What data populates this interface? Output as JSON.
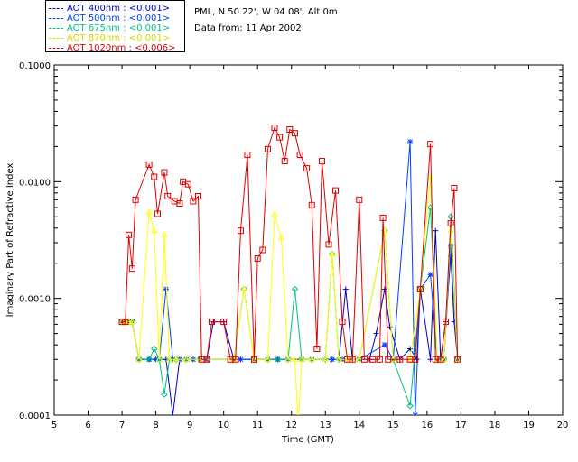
{
  "header": {
    "station": "PML, N 50 22', W 04 08', Alt 0m",
    "date": "Data from: 11 Apr 2002"
  },
  "chart_data": {
    "type": "line",
    "title": "",
    "xlabel": "Time (GMT)",
    "ylabel": "Imaginary Part of Refractive Index",
    "xlim": [
      5,
      20
    ],
    "ylim": [
      0.0001,
      0.1
    ],
    "yscale": "log",
    "xticks": [
      "5",
      "6",
      "7",
      "8",
      "9",
      "10",
      "11",
      "12",
      "13",
      "14",
      "15",
      "16",
      "17",
      "18",
      "19",
      "20"
    ],
    "yticks": [
      "0.0001",
      "0.0010",
      "0.0100",
      "0.1000"
    ],
    "legend_position": "top-left",
    "series": [
      {
        "name": "AOT  400nm : <0.001>",
        "color": "#0000c0",
        "marker": "plus",
        "points": [
          [
            7.0,
            0.00063
          ],
          [
            7.1,
            0.00063
          ],
          [
            7.2,
            0.00063
          ],
          [
            7.3,
            0.00063
          ],
          [
            7.5,
            0.0003
          ],
          [
            7.8,
            0.0003
          ],
          [
            8.0,
            0.0003
          ],
          [
            8.1,
            0.0003
          ],
          [
            8.3,
            0.0003
          ],
          [
            8.5,
            0.0001
          ],
          [
            8.7,
            0.0003
          ],
          [
            8.9,
            0.0003
          ],
          [
            9.1,
            0.0003
          ],
          [
            9.3,
            0.0003
          ],
          [
            9.5,
            0.0003
          ],
          [
            9.7,
            0.00063
          ],
          [
            10.0,
            0.00063
          ],
          [
            10.3,
            0.0003
          ],
          [
            10.5,
            0.0003
          ],
          [
            10.9,
            0.0003
          ],
          [
            11.3,
            0.0003
          ],
          [
            11.6,
            0.0003
          ],
          [
            11.9,
            0.0003
          ],
          [
            12.3,
            0.0003
          ],
          [
            12.6,
            0.0003
          ],
          [
            12.9,
            0.0003
          ],
          [
            13.2,
            0.0003
          ],
          [
            13.4,
            0.0003
          ],
          [
            13.6,
            0.0012
          ],
          [
            13.8,
            0.0003
          ],
          [
            14.0,
            0.0003
          ],
          [
            14.3,
            0.0003
          ],
          [
            14.5,
            0.0005
          ],
          [
            14.75,
            0.0012
          ],
          [
            14.9,
            0.00057
          ],
          [
            15.2,
            0.0003
          ],
          [
            15.5,
            0.00037
          ],
          [
            15.7,
            0.0003
          ],
          [
            15.8,
            0.0012
          ],
          [
            16.1,
            0.0003
          ],
          [
            16.25,
            0.0038
          ],
          [
            16.4,
            0.0003
          ],
          [
            16.55,
            0.00063
          ],
          [
            16.7,
            0.0023
          ],
          [
            16.8,
            0.00063
          ],
          [
            16.9,
            0.0003
          ]
        ]
      },
      {
        "name": "AOT  500nm : <0.001>",
        "color": "#0040ff",
        "marker": "star",
        "points": [
          [
            7.0,
            0.00063
          ],
          [
            7.1,
            0.00063
          ],
          [
            7.2,
            0.00063
          ],
          [
            7.3,
            0.00063
          ],
          [
            7.5,
            0.0003
          ],
          [
            7.8,
            0.0003
          ],
          [
            8.0,
            0.0003
          ],
          [
            8.1,
            0.0003
          ],
          [
            8.3,
            0.0012
          ],
          [
            8.5,
            0.0003
          ],
          [
            8.7,
            0.0003
          ],
          [
            8.9,
            0.0003
          ],
          [
            9.1,
            0.0003
          ],
          [
            9.3,
            0.0003
          ],
          [
            9.5,
            0.0003
          ],
          [
            10.3,
            0.0003
          ],
          [
            10.5,
            0.0003
          ],
          [
            10.9,
            0.0003
          ],
          [
            11.3,
            0.0003
          ],
          [
            11.6,
            0.0003
          ],
          [
            11.9,
            0.0003
          ],
          [
            12.3,
            0.0003
          ],
          [
            12.6,
            0.0003
          ],
          [
            13.2,
            0.0003
          ],
          [
            13.5,
            0.0003
          ],
          [
            14.0,
            0.0003
          ],
          [
            14.75,
            0.0004
          ],
          [
            15.0,
            0.0003
          ],
          [
            15.5,
            0.022
          ],
          [
            15.65,
            0.0001
          ],
          [
            15.8,
            0.0012
          ],
          [
            16.1,
            0.0016
          ],
          [
            16.3,
            0.0003
          ],
          [
            16.5,
            0.0003
          ],
          [
            16.7,
            0.0028
          ],
          [
            16.9,
            0.0003
          ]
        ]
      },
      {
        "name": "AOT  675nm : <0.001>",
        "color": "#00c080",
        "marker": "diamond",
        "points": [
          [
            7.0,
            0.00063
          ],
          [
            7.1,
            0.00063
          ],
          [
            7.2,
            0.00063
          ],
          [
            7.3,
            0.00063
          ],
          [
            7.5,
            0.0003
          ],
          [
            7.8,
            0.0003
          ],
          [
            7.95,
            0.00037
          ],
          [
            8.1,
            0.0003
          ],
          [
            8.25,
            0.00015
          ],
          [
            8.4,
            0.0003
          ],
          [
            8.6,
            0.0003
          ],
          [
            8.9,
            0.0003
          ],
          [
            9.3,
            0.0003
          ],
          [
            10.3,
            0.0003
          ],
          [
            10.6,
            0.0012
          ],
          [
            10.9,
            0.0003
          ],
          [
            11.3,
            0.0003
          ],
          [
            11.6,
            0.0003
          ],
          [
            11.9,
            0.0003
          ],
          [
            12.1,
            0.0012
          ],
          [
            12.3,
            0.0003
          ],
          [
            12.6,
            0.0003
          ],
          [
            13.0,
            0.0003
          ],
          [
            13.2,
            0.0024
          ],
          [
            13.4,
            0.0003
          ],
          [
            13.7,
            0.0003
          ],
          [
            14.0,
            0.0003
          ],
          [
            14.75,
            0.0038
          ],
          [
            15.0,
            0.0003
          ],
          [
            15.5,
            0.00012
          ],
          [
            15.8,
            0.0012
          ],
          [
            16.1,
            0.006
          ],
          [
            16.3,
            0.0003
          ],
          [
            16.5,
            0.0003
          ],
          [
            16.7,
            0.005
          ],
          [
            16.9,
            0.0003
          ]
        ]
      },
      {
        "name": "AOT  870nm : <0.001>",
        "color": "#ffff00",
        "marker": "triangle",
        "points": [
          [
            7.0,
            0.00063
          ],
          [
            7.1,
            0.00063
          ],
          [
            7.2,
            0.00063
          ],
          [
            7.3,
            0.00063
          ],
          [
            7.5,
            0.0003
          ],
          [
            7.8,
            0.0055
          ],
          [
            7.95,
            0.0038
          ],
          [
            8.1,
            0.0003
          ],
          [
            8.25,
            0.0035
          ],
          [
            8.4,
            0.0003
          ],
          [
            8.6,
            0.0003
          ],
          [
            8.9,
            0.0003
          ],
          [
            9.3,
            0.0003
          ],
          [
            10.3,
            0.0003
          ],
          [
            10.6,
            0.0012
          ],
          [
            10.9,
            0.0003
          ],
          [
            11.3,
            0.0003
          ],
          [
            11.5,
            0.0052
          ],
          [
            11.7,
            0.0033
          ],
          [
            11.9,
            0.0003
          ],
          [
            12.1,
            0.0003
          ],
          [
            12.2,
            8e-05
          ],
          [
            12.3,
            0.0003
          ],
          [
            12.6,
            0.0003
          ],
          [
            13.0,
            0.0003
          ],
          [
            13.2,
            0.0024
          ],
          [
            13.4,
            0.0003
          ],
          [
            13.7,
            0.0003
          ],
          [
            14.0,
            0.0003
          ],
          [
            14.75,
            0.0038
          ],
          [
            15.0,
            0.0003
          ],
          [
            15.5,
            0.0003
          ],
          [
            15.8,
            0.0012
          ],
          [
            16.1,
            0.011
          ],
          [
            16.3,
            0.0003
          ],
          [
            16.5,
            0.0003
          ],
          [
            16.7,
            0.0038
          ],
          [
            16.9,
            0.0003
          ]
        ]
      },
      {
        "name": "AOT 1020nm : <0.006>",
        "color": "#e00000",
        "marker": "square",
        "points": [
          [
            7.0,
            0.00063
          ],
          [
            7.1,
            0.00063
          ],
          [
            7.2,
            0.0035
          ],
          [
            7.3,
            0.0018
          ],
          [
            7.4,
            0.007
          ],
          [
            7.8,
            0.014
          ],
          [
            7.95,
            0.011
          ],
          [
            8.05,
            0.0053
          ],
          [
            8.25,
            0.012
          ],
          [
            8.35,
            0.0075
          ],
          [
            8.55,
            0.0068
          ],
          [
            8.7,
            0.0065
          ],
          [
            8.8,
            0.01
          ],
          [
            8.95,
            0.0095
          ],
          [
            9.1,
            0.0068
          ],
          [
            9.25,
            0.0075
          ],
          [
            9.35,
            0.0003
          ],
          [
            9.5,
            0.0003
          ],
          [
            9.65,
            0.00063
          ],
          [
            10.0,
            0.00063
          ],
          [
            10.2,
            0.0003
          ],
          [
            10.35,
            0.0003
          ],
          [
            10.5,
            0.0038
          ],
          [
            10.7,
            0.017
          ],
          [
            10.9,
            0.0003
          ],
          [
            11.0,
            0.0022
          ],
          [
            11.15,
            0.0026
          ],
          [
            11.3,
            0.019
          ],
          [
            11.5,
            0.029
          ],
          [
            11.65,
            0.024
          ],
          [
            11.8,
            0.015
          ],
          [
            11.95,
            0.028
          ],
          [
            12.1,
            0.026
          ],
          [
            12.25,
            0.017
          ],
          [
            12.45,
            0.013
          ],
          [
            12.6,
            0.0063
          ],
          [
            12.75,
            0.00037
          ],
          [
            12.9,
            0.015
          ],
          [
            13.1,
            0.0029
          ],
          [
            13.3,
            0.0084
          ],
          [
            13.5,
            0.00063
          ],
          [
            13.65,
            0.0003
          ],
          [
            13.8,
            0.0003
          ],
          [
            14.0,
            0.007
          ],
          [
            14.15,
            0.0003
          ],
          [
            14.4,
            0.0003
          ],
          [
            14.6,
            0.0003
          ],
          [
            14.7,
            0.0049
          ],
          [
            14.85,
            0.0003
          ],
          [
            15.2,
            0.0003
          ],
          [
            15.5,
            0.0003
          ],
          [
            15.65,
            0.0003
          ],
          [
            15.8,
            0.0012
          ],
          [
            16.1,
            0.021
          ],
          [
            16.25,
            0.0003
          ],
          [
            16.4,
            0.0003
          ],
          [
            16.55,
            0.00063
          ],
          [
            16.7,
            0.0044
          ],
          [
            16.8,
            0.0088
          ],
          [
            16.9,
            0.0003
          ]
        ]
      }
    ]
  }
}
